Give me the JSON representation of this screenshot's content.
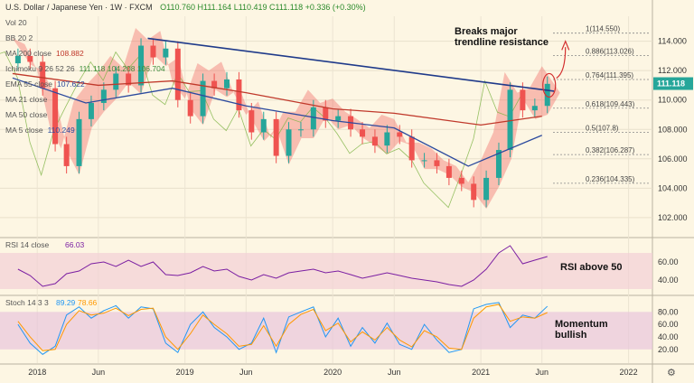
{
  "header": {
    "symbol": "U.S. Dollar / Japanese Yen",
    "interval": "1W",
    "exchange": "FXCM",
    "ohlc": "O110.760 H111.164 L110.419 C111.118 +0.336 (+0.30%)"
  },
  "indicators": [
    {
      "label": "Vol 20",
      "value": ""
    },
    {
      "label": "BB 20 2",
      "value": ""
    },
    {
      "label": "MA 200 close",
      "value": "108.882",
      "color": "#c0392b"
    },
    {
      "label": "Ichimoku 9 26 52 26",
      "value": "111.118 104.208 106.704",
      "color": "#3c8d3c"
    },
    {
      "label": "EMA 55 close",
      "value": "107.622",
      "color": "#2c4a9e"
    },
    {
      "label": "MA 21 close",
      "value": ""
    },
    {
      "label": "MA 50 close",
      "value": ""
    },
    {
      "label": "MA 5 close",
      "value": "110.249",
      "color": "#2c4a9e"
    }
  ],
  "annotations": {
    "trendline_text": "Breaks major\ntrendline resistance",
    "rsi_text": "RSI above 50",
    "stoch_text": "Momentum\nbullish"
  },
  "last_price": "111.118",
  "colors": {
    "up": "#26a69a",
    "down": "#ef5350",
    "trend": "#1f3a8a",
    "ma200": "#c0392b",
    "ema55": "#2c4a9e",
    "rsi": "#7b1fa2",
    "stoch_k": "#2196f3",
    "stoch_d": "#ff9800"
  },
  "chart_data": [
    {
      "type": "candlestick",
      "y_ticks": [
        102,
        104,
        106,
        108,
        110,
        112,
        114
      ],
      "x_ticks": [
        "2018",
        "Jun",
        "2019",
        "Jun",
        "2020",
        "Jun",
        "2021",
        "Jun",
        "2022"
      ],
      "ylim": [
        100.7,
        115.7
      ],
      "fib_levels": [
        {
          "label": "1(114.550)",
          "value": 114.55
        },
        {
          "label": "0.886(113.026)",
          "value": 113.026
        },
        {
          "label": "0.764(111.395)",
          "value": 111.395
        },
        {
          "label": "0.618(109.443)",
          "value": 109.443
        },
        {
          "label": "0.5(107.8)",
          "value": 107.8
        },
        {
          "label": "0.382(106.287)",
          "value": 106.287
        },
        {
          "label": "0.236(104.335)",
          "value": 104.335
        }
      ],
      "close_series_points": [
        [
          "2017-11",
          113.0
        ],
        [
          "2017-12",
          112.6
        ],
        [
          "2018-01",
          110.8
        ],
        [
          "2018-02",
          107.0
        ],
        [
          "2018-03",
          105.5
        ],
        [
          "2018-04",
          108.7
        ],
        [
          "2018-05",
          109.8
        ],
        [
          "2018-06",
          110.7
        ],
        [
          "2018-07",
          111.8
        ],
        [
          "2018-08",
          111.0
        ],
        [
          "2018-09",
          113.7
        ],
        [
          "2018-10",
          112.9
        ],
        [
          "2018-11",
          113.5
        ],
        [
          "2018-12",
          110.0
        ],
        [
          "2019-01",
          108.9
        ],
        [
          "2019-02",
          111.3
        ],
        [
          "2019-03",
          110.8
        ],
        [
          "2019-04",
          111.4
        ],
        [
          "2019-05",
          109.3
        ],
        [
          "2019-06",
          107.8
        ],
        [
          "2019-07",
          108.7
        ],
        [
          "2019-08",
          106.2
        ],
        [
          "2019-09",
          108.0
        ],
        [
          "2019-10",
          108.0
        ],
        [
          "2019-11",
          109.5
        ],
        [
          "2019-12",
          108.6
        ],
        [
          "2020-01",
          108.9
        ],
        [
          "2020-02",
          108.0
        ],
        [
          "2020-03",
          107.5
        ],
        [
          "2020-04",
          106.9
        ],
        [
          "2020-05",
          107.8
        ],
        [
          "2020-06",
          107.5
        ],
        [
          "2020-07",
          105.9
        ],
        [
          "2020-08",
          105.9
        ],
        [
          "2020-09",
          105.5
        ],
        [
          "2020-10",
          104.7
        ],
        [
          "2020-11",
          104.3
        ],
        [
          "2020-12",
          103.2
        ],
        [
          "2021-01",
          104.7
        ],
        [
          "2021-02",
          106.6
        ],
        [
          "2021-03",
          110.7
        ],
        [
          "2021-04",
          109.3
        ],
        [
          "2021-05",
          109.6
        ],
        [
          "2021-06",
          111.1
        ]
      ],
      "trendline": {
        "from": [
          "2018-10",
          114.2
        ],
        "to": [
          "2021-07",
          110.6
        ]
      },
      "ma200_points": [
        [
          "2017-11",
          111.8
        ],
        [
          "2018-06",
          111.0
        ],
        [
          "2018-12",
          111.3
        ],
        [
          "2019-06",
          110.5
        ],
        [
          "2020-01",
          109.4
        ],
        [
          "2020-06",
          109.1
        ],
        [
          "2021-01",
          108.3
        ],
        [
          "2021-06",
          108.9
        ]
      ],
      "ema55_points": [
        [
          "2017-11",
          111.5
        ],
        [
          "2018-05",
          109.8
        ],
        [
          "2018-12",
          110.8
        ],
        [
          "2019-06",
          109.6
        ],
        [
          "2020-01",
          108.6
        ],
        [
          "2020-06",
          108.1
        ],
        [
          "2020-12",
          105.5
        ],
        [
          "2021-06",
          107.6
        ]
      ]
    },
    {
      "type": "line",
      "title": "RSI 14 close",
      "value": "66.03",
      "y_ticks": [
        40.0,
        60.0
      ],
      "ylim": [
        24,
        86
      ],
      "band": [
        30,
        70
      ],
      "values": [
        52,
        45,
        33,
        36,
        47,
        50,
        58,
        60,
        55,
        62,
        55,
        60,
        46,
        45,
        48,
        55,
        50,
        52,
        44,
        40,
        46,
        42,
        48,
        50,
        52,
        48,
        50,
        46,
        42,
        45,
        48,
        45,
        42,
        40,
        38,
        35,
        33,
        40,
        52,
        70,
        78,
        58,
        62,
        66
      ]
    },
    {
      "type": "line",
      "title": "Stoch 14 3 3",
      "k_value": "89.29",
      "d_value": "78.66",
      "y_ticks": [
        20.0,
        40.0,
        60.0,
        80.0
      ],
      "ylim": [
        -2,
        105
      ],
      "band": [
        20,
        80
      ],
      "k_values": [
        60,
        30,
        12,
        25,
        75,
        88,
        70,
        82,
        90,
        70,
        88,
        85,
        30,
        15,
        60,
        80,
        55,
        40,
        20,
        30,
        70,
        15,
        72,
        80,
        88,
        40,
        70,
        25,
        55,
        30,
        62,
        28,
        20,
        60,
        35,
        15,
        20,
        85,
        92,
        95,
        55,
        75,
        70,
        89
      ],
      "d_values": [
        65,
        40,
        18,
        20,
        60,
        82,
        75,
        78,
        86,
        74,
        84,
        86,
        40,
        20,
        45,
        75,
        60,
        45,
        25,
        28,
        58,
        25,
        60,
        76,
        84,
        50,
        62,
        32,
        48,
        35,
        55,
        35,
        24,
        50,
        40,
        22,
        20,
        70,
        88,
        92,
        65,
        72,
        70,
        79
      ]
    }
  ]
}
